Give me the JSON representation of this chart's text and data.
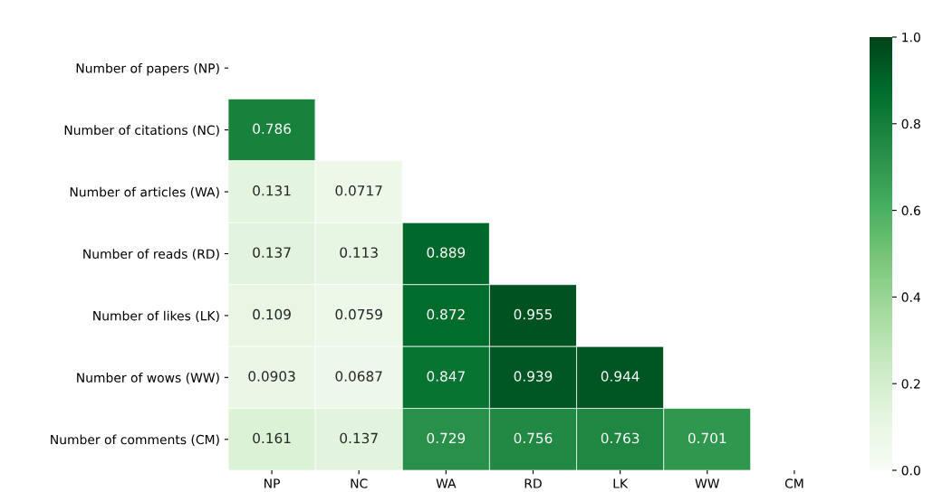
{
  "chart_data": {
    "type": "heatmap",
    "categories": [
      "NP",
      "NC",
      "WA",
      "RD",
      "LK",
      "WW",
      "CM"
    ],
    "y_categories": [
      "Number of papers (NP)",
      "Number of citations (NC)",
      "Number of articles (WA)",
      "Number of reads (RD)",
      "Number of likes (LK)",
      "Number of wows (WW)",
      "Number of comments (CM)"
    ],
    "cells": [
      [
        null,
        null,
        null,
        null,
        null,
        null,
        null
      ],
      [
        0.786,
        null,
        null,
        null,
        null,
        null,
        null
      ],
      [
        0.131,
        0.0717,
        null,
        null,
        null,
        null,
        null
      ],
      [
        0.137,
        0.113,
        0.889,
        null,
        null,
        null,
        null
      ],
      [
        0.109,
        0.0759,
        0.872,
        0.955,
        null,
        null,
        null
      ],
      [
        0.0903,
        0.0687,
        0.847,
        0.939,
        0.944,
        null,
        null
      ],
      [
        0.161,
        0.137,
        0.729,
        0.756,
        0.763,
        0.701,
        null
      ]
    ],
    "clim": [
      0.0,
      1.0
    ],
    "cticks": [
      {
        "value": 0.0,
        "label": "0.0"
      },
      {
        "value": 0.2,
        "label": "0.2"
      },
      {
        "value": 0.4,
        "label": "0.4"
      },
      {
        "value": 0.6,
        "label": "0.6"
      },
      {
        "value": 0.8,
        "label": "0.8"
      },
      {
        "value": 1.0,
        "label": "1.0"
      }
    ],
    "data_labels": true
  }
}
